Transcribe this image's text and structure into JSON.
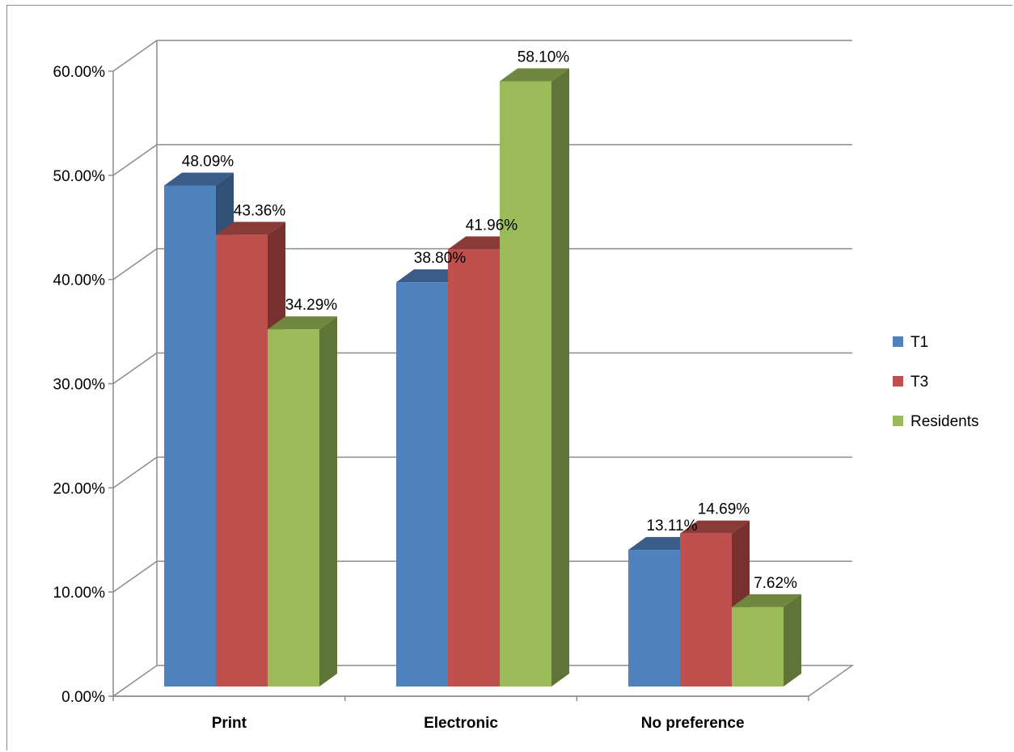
{
  "chart_data": {
    "type": "bar",
    "style": "3d-clustered-column",
    "categories": [
      "Print",
      "Electronic",
      "No preference"
    ],
    "series": [
      {
        "name": "T1",
        "color": "#4f81bd",
        "values": [
          48.09,
          38.8,
          13.11
        ]
      },
      {
        "name": "T3",
        "color": "#c0504d",
        "values": [
          43.36,
          41.96,
          14.69
        ]
      },
      {
        "name": "Residents",
        "color": "#9bbb59",
        "values": [
          34.29,
          58.1,
          7.62
        ]
      }
    ],
    "data_labels": [
      [
        "48.09%",
        "38.80%",
        "13.11%"
      ],
      [
        "43.36%",
        "41.96%",
        "14.69%"
      ],
      [
        "34.29%",
        "58.10%",
        "7.62%"
      ]
    ],
    "y_ticks": [
      "0.00%",
      "10.00%",
      "20.00%",
      "30.00%",
      "40.00%",
      "50.00%",
      "60.00%"
    ],
    "ylim": [
      0,
      60
    ],
    "grid": true,
    "legend_position": "right"
  }
}
